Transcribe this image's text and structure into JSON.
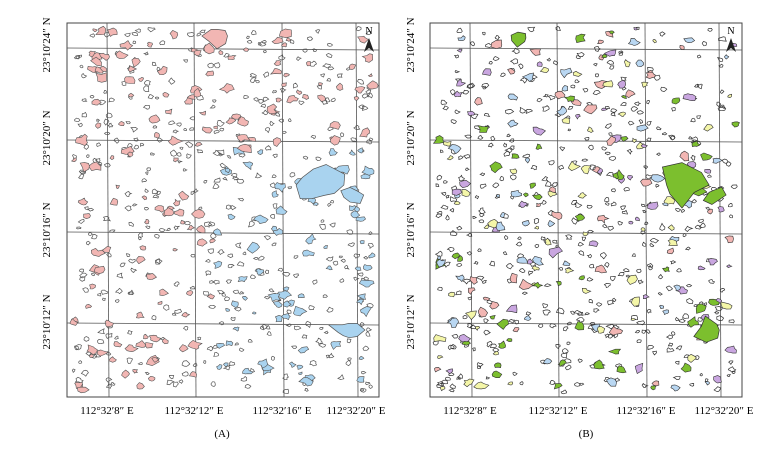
{
  "figure": {
    "panels": [
      {
        "id": "A",
        "caption": "(A)",
        "x_ticks": [
          "112°32′8″ E",
          "112°32′12″ E",
          "112°32′16″ E",
          "112°32′20″ E"
        ],
        "y_ticks": [
          "23°10′24″ N",
          "23°10′20″ N",
          "23°10′16″ N",
          "23°10′12″ N"
        ],
        "north_label": "N",
        "patch_colors": {
          "pink": "#F2B6B3",
          "blue": "#A9D3EF"
        },
        "outline_color": "#555555"
      },
      {
        "id": "B",
        "caption": "(B)",
        "x_ticks": [
          "112°32′8″ E",
          "112°32′12″ E",
          "112°32′16″ E",
          "112°32′20″ E"
        ],
        "y_ticks": [
          "23°10′24″ N",
          "23°10′20″ N",
          "23°10′16″ N",
          "23°10′12″ N"
        ],
        "north_label": "N",
        "patch_colors": {
          "green": "#7CBF2E",
          "yellow": "#F4F6A8",
          "pink": "#F2B6B3",
          "purple": "#C9A6E0",
          "blue": "#B9D7F2"
        },
        "outline_color": "#333333"
      }
    ]
  }
}
